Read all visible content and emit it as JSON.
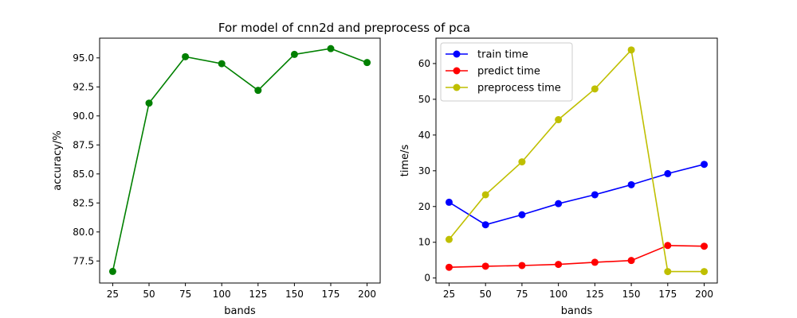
{
  "figure": {
    "title": "For model of cnn2d and preprocess of pca"
  },
  "chart_data": [
    {
      "type": "line",
      "title": "",
      "xlabel": "bands",
      "ylabel": "accuracy/%",
      "x": [
        25,
        50,
        75,
        100,
        125,
        150,
        175,
        200
      ],
      "xticks": [
        25,
        50,
        75,
        100,
        125,
        150,
        175,
        200
      ],
      "yticks": [
        77.5,
        80.0,
        82.5,
        85.0,
        87.5,
        90.0,
        92.5,
        95.0
      ],
      "ytick_labels": [
        "77.5",
        "80.0",
        "82.5",
        "85.0",
        "87.5",
        "90.0",
        "92.5",
        "95.0"
      ],
      "xlim": [
        16,
        209
      ],
      "ylim": [
        75.6,
        96.7
      ],
      "grid": false,
      "series": [
        {
          "name": "",
          "color": "#008000",
          "marker": "circle",
          "values": [
            76.6,
            91.1,
            95.1,
            94.5,
            92.2,
            95.3,
            95.8,
            94.6
          ]
        }
      ]
    },
    {
      "type": "line",
      "title": "",
      "xlabel": "bands",
      "ylabel": "time/s",
      "x": [
        25,
        50,
        75,
        100,
        125,
        150,
        175,
        200
      ],
      "xticks": [
        25,
        50,
        75,
        100,
        125,
        150,
        175,
        200
      ],
      "yticks": [
        0,
        10,
        20,
        30,
        40,
        50,
        60
      ],
      "ytick_labels": [
        "0",
        "10",
        "20",
        "30",
        "40",
        "50",
        "60"
      ],
      "xlim": [
        16,
        209
      ],
      "ylim": [
        -1.4,
        67.1
      ],
      "grid": false,
      "legend": "top-left",
      "series": [
        {
          "name": "train time",
          "color": "#0000ff",
          "marker": "circle",
          "values": [
            21.2,
            14.9,
            17.7,
            20.8,
            23.3,
            26.1,
            29.2,
            31.8
          ]
        },
        {
          "name": "predict time",
          "color": "#ff0000",
          "marker": "circle",
          "values": [
            3.0,
            3.3,
            3.5,
            3.8,
            4.4,
            4.9,
            9.1,
            8.9
          ]
        },
        {
          "name": "preprocess time",
          "color": "#bfbf00",
          "marker": "circle",
          "values": [
            10.8,
            23.3,
            32.5,
            44.3,
            52.9,
            63.8,
            1.8,
            1.8
          ]
        }
      ]
    }
  ]
}
